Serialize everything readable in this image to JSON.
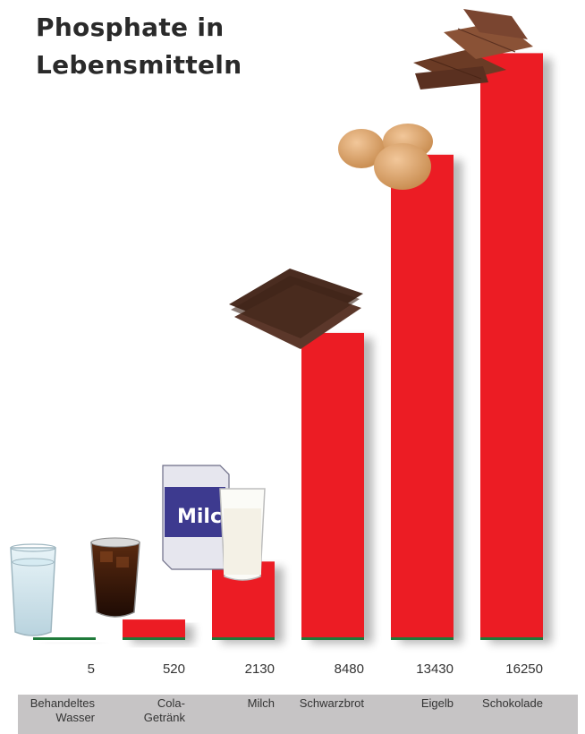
{
  "title_lines": [
    "Phosphate in",
    "Lebensmitteln"
  ],
  "colors": {
    "bar": "#ec1c24",
    "baseline": "#1f7a3a",
    "band": "#c6c4c5"
  },
  "chart_data": {
    "type": "bar",
    "categories": [
      [
        "Behandeltes",
        "Wasser"
      ],
      [
        "Cola-",
        "Getränk"
      ],
      [
        "Milch"
      ],
      [
        "Schwarzbrot"
      ],
      [
        "Eigelb"
      ],
      [
        "Schokolade"
      ]
    ],
    "values": [
      5,
      520,
      2130,
      8480,
      13430,
      16250
    ],
    "value_labels": [
      "5",
      "520",
      "2130",
      "8480",
      "13430",
      "16250"
    ],
    "title": "Phosphate in Lebensmitteln",
    "ylim": [
      0,
      17000
    ],
    "grid": false,
    "icons": [
      "glass-of-water-icon",
      "cola-glass-icon",
      "milk-carton-and-glass-icon",
      "dark-bread-icon",
      "eggs-icon",
      "chocolate-icon"
    ]
  }
}
